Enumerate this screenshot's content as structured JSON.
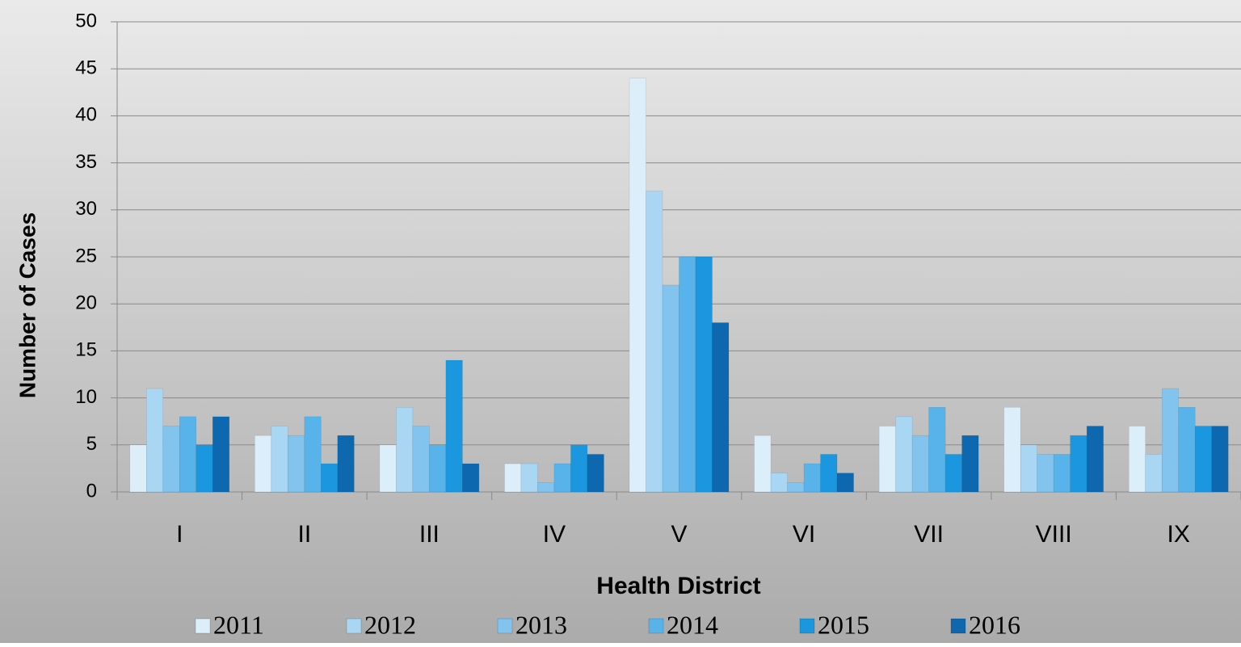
{
  "chart_data": {
    "type": "bar",
    "x_label": "Health District",
    "y_label": "Number of Cases",
    "categories": [
      "I",
      "II",
      "III",
      "IV",
      "V",
      "VI",
      "VII",
      "VIII",
      "IX"
    ],
    "series": [
      {
        "name": "2011",
        "color": "#dcEEFA",
        "values": [
          5,
          6,
          5,
          3,
          44,
          6,
          7,
          9,
          7
        ]
      },
      {
        "name": "2012",
        "color": "#a9d6f3",
        "values": [
          11,
          7,
          9,
          3,
          32,
          2,
          8,
          5,
          4
        ]
      },
      {
        "name": "2013",
        "color": "#82c4ee",
        "values": [
          7,
          6,
          7,
          1,
          22,
          1,
          6,
          4,
          11
        ]
      },
      {
        "name": "2014",
        "color": "#57b3ea",
        "values": [
          8,
          8,
          5,
          3,
          25,
          3,
          9,
          4,
          9
        ]
      },
      {
        "name": "2015",
        "color": "#1b97df",
        "values": [
          5,
          3,
          14,
          5,
          25,
          4,
          4,
          6,
          7
        ]
      },
      {
        "name": "2016",
        "color": "#0d68b0",
        "values": [
          8,
          6,
          3,
          4,
          18,
          2,
          6,
          7,
          7
        ]
      }
    ],
    "ylim": [
      0,
      50
    ],
    "yticks": [
      0,
      5,
      10,
      15,
      20,
      25,
      30,
      35,
      40,
      45,
      50
    ],
    "grid": true,
    "legend": "bottom"
  }
}
